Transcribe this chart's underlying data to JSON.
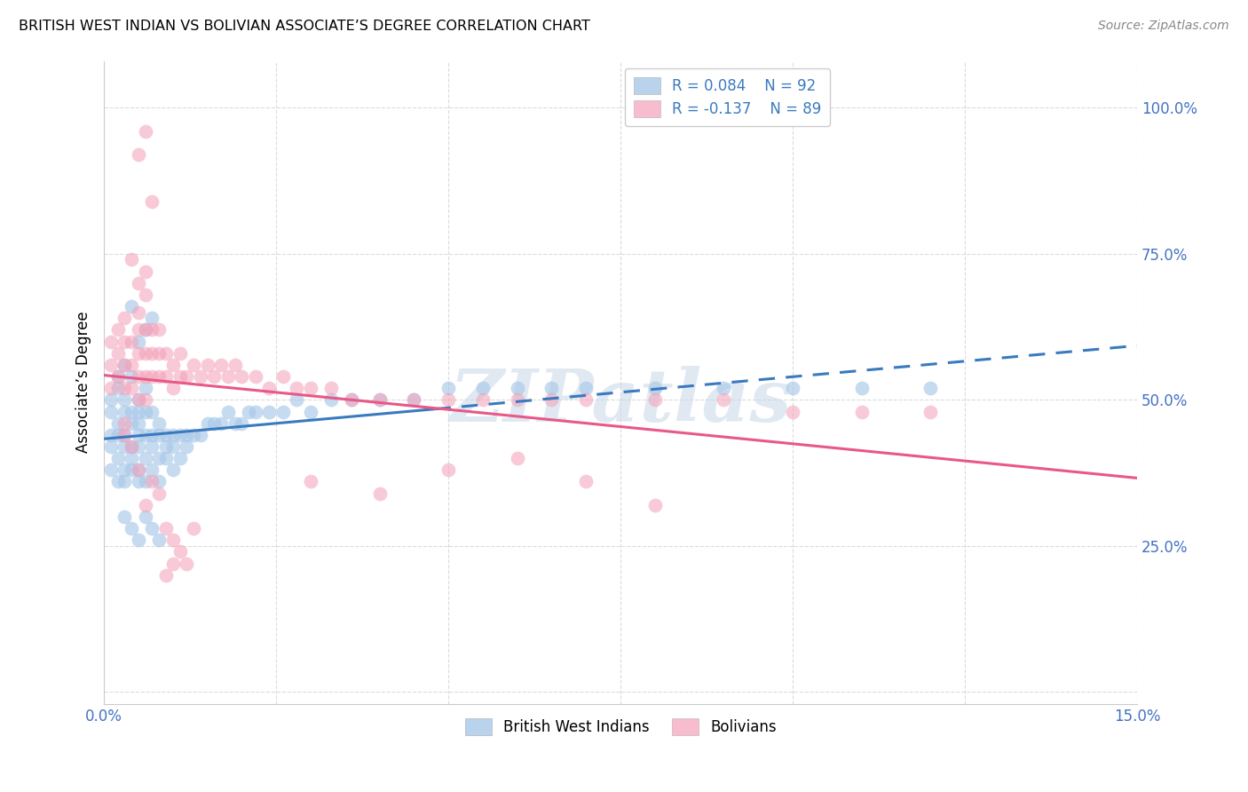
{
  "title": "BRITISH WEST INDIAN VS BOLIVIAN ASSOCIATE’S DEGREE CORRELATION CHART",
  "source": "Source: ZipAtlas.com",
  "ylabel": "Associate’s Degree",
  "xlim": [
    0.0,
    0.15
  ],
  "ylim": [
    -0.02,
    1.08
  ],
  "ytick_values": [
    0.0,
    0.25,
    0.5,
    0.75,
    1.0
  ],
  "ytick_labels": [
    "",
    "25.0%",
    "50.0%",
    "75.0%",
    "100.0%"
  ],
  "xtick_values": [
    0.0,
    0.025,
    0.05,
    0.075,
    0.1,
    0.125,
    0.15
  ],
  "xtick_labels": [
    "0.0%",
    "",
    "",
    "",
    "",
    "",
    "15.0%"
  ],
  "legend_r_blue": "R = 0.084",
  "legend_n_blue": "N = 92",
  "legend_r_pink": "R = -0.137",
  "legend_n_pink": "N = 89",
  "blue_color": "#a8c8e8",
  "pink_color": "#f4a0b8",
  "blue_line_color": "#3a7abf",
  "pink_line_color": "#e85888",
  "legend_text_color": "#3a7abf",
  "watermark": "ZIPatlas",
  "grid_color": "#cccccc",
  "blue_x": [
    0.001,
    0.001,
    0.001,
    0.001,
    0.001,
    0.002,
    0.002,
    0.002,
    0.002,
    0.002,
    0.002,
    0.003,
    0.003,
    0.003,
    0.003,
    0.003,
    0.003,
    0.003,
    0.004,
    0.004,
    0.004,
    0.004,
    0.004,
    0.004,
    0.005,
    0.005,
    0.005,
    0.005,
    0.005,
    0.005,
    0.005,
    0.006,
    0.006,
    0.006,
    0.006,
    0.006,
    0.007,
    0.007,
    0.007,
    0.007,
    0.008,
    0.008,
    0.008,
    0.008,
    0.009,
    0.009,
    0.009,
    0.01,
    0.01,
    0.01,
    0.011,
    0.011,
    0.012,
    0.012,
    0.013,
    0.014,
    0.015,
    0.016,
    0.017,
    0.018,
    0.019,
    0.02,
    0.021,
    0.022,
    0.024,
    0.026,
    0.028,
    0.03,
    0.033,
    0.036,
    0.04,
    0.045,
    0.05,
    0.055,
    0.06,
    0.065,
    0.07,
    0.08,
    0.09,
    0.1,
    0.11,
    0.12,
    0.003,
    0.004,
    0.005,
    0.006,
    0.007,
    0.008,
    0.005,
    0.006,
    0.007,
    0.004
  ],
  "blue_y": [
    0.44,
    0.48,
    0.42,
    0.5,
    0.38,
    0.46,
    0.4,
    0.52,
    0.36,
    0.44,
    0.54,
    0.48,
    0.42,
    0.38,
    0.56,
    0.44,
    0.5,
    0.36,
    0.46,
    0.42,
    0.48,
    0.38,
    0.54,
    0.4,
    0.44,
    0.48,
    0.42,
    0.38,
    0.5,
    0.36,
    0.46,
    0.44,
    0.4,
    0.48,
    0.36,
    0.52,
    0.44,
    0.42,
    0.48,
    0.38,
    0.44,
    0.4,
    0.46,
    0.36,
    0.44,
    0.42,
    0.4,
    0.44,
    0.42,
    0.38,
    0.44,
    0.4,
    0.44,
    0.42,
    0.44,
    0.44,
    0.46,
    0.46,
    0.46,
    0.48,
    0.46,
    0.46,
    0.48,
    0.48,
    0.48,
    0.48,
    0.5,
    0.48,
    0.5,
    0.5,
    0.5,
    0.5,
    0.52,
    0.52,
    0.52,
    0.52,
    0.52,
    0.52,
    0.52,
    0.52,
    0.52,
    0.52,
    0.3,
    0.28,
    0.26,
    0.3,
    0.28,
    0.26,
    0.6,
    0.62,
    0.64,
    0.66
  ],
  "pink_x": [
    0.001,
    0.001,
    0.001,
    0.002,
    0.002,
    0.002,
    0.003,
    0.003,
    0.003,
    0.003,
    0.004,
    0.004,
    0.004,
    0.005,
    0.005,
    0.005,
    0.005,
    0.006,
    0.006,
    0.006,
    0.006,
    0.007,
    0.007,
    0.007,
    0.008,
    0.008,
    0.008,
    0.009,
    0.009,
    0.01,
    0.01,
    0.011,
    0.011,
    0.012,
    0.013,
    0.014,
    0.015,
    0.016,
    0.017,
    0.018,
    0.019,
    0.02,
    0.022,
    0.024,
    0.026,
    0.028,
    0.03,
    0.033,
    0.036,
    0.04,
    0.045,
    0.05,
    0.055,
    0.06,
    0.065,
    0.07,
    0.08,
    0.09,
    0.1,
    0.11,
    0.12,
    0.003,
    0.003,
    0.004,
    0.005,
    0.006,
    0.007,
    0.008,
    0.009,
    0.01,
    0.005,
    0.006,
    0.007,
    0.005,
    0.006,
    0.004,
    0.005,
    0.006,
    0.03,
    0.04,
    0.05,
    0.06,
    0.07,
    0.08,
    0.009,
    0.01,
    0.011,
    0.012,
    0.013
  ],
  "pink_y": [
    0.52,
    0.56,
    0.6,
    0.54,
    0.58,
    0.62,
    0.52,
    0.56,
    0.6,
    0.64,
    0.52,
    0.56,
    0.6,
    0.54,
    0.58,
    0.62,
    0.5,
    0.54,
    0.58,
    0.62,
    0.5,
    0.54,
    0.58,
    0.62,
    0.54,
    0.58,
    0.62,
    0.54,
    0.58,
    0.52,
    0.56,
    0.54,
    0.58,
    0.54,
    0.56,
    0.54,
    0.56,
    0.54,
    0.56,
    0.54,
    0.56,
    0.54,
    0.54,
    0.52,
    0.54,
    0.52,
    0.52,
    0.52,
    0.5,
    0.5,
    0.5,
    0.5,
    0.5,
    0.5,
    0.5,
    0.5,
    0.5,
    0.5,
    0.48,
    0.48,
    0.48,
    0.46,
    0.44,
    0.42,
    0.38,
    0.32,
    0.36,
    0.34,
    0.2,
    0.22,
    0.92,
    0.96,
    0.84,
    0.7,
    0.72,
    0.74,
    0.65,
    0.68,
    0.36,
    0.34,
    0.38,
    0.4,
    0.36,
    0.32,
    0.28,
    0.26,
    0.24,
    0.22,
    0.28
  ]
}
